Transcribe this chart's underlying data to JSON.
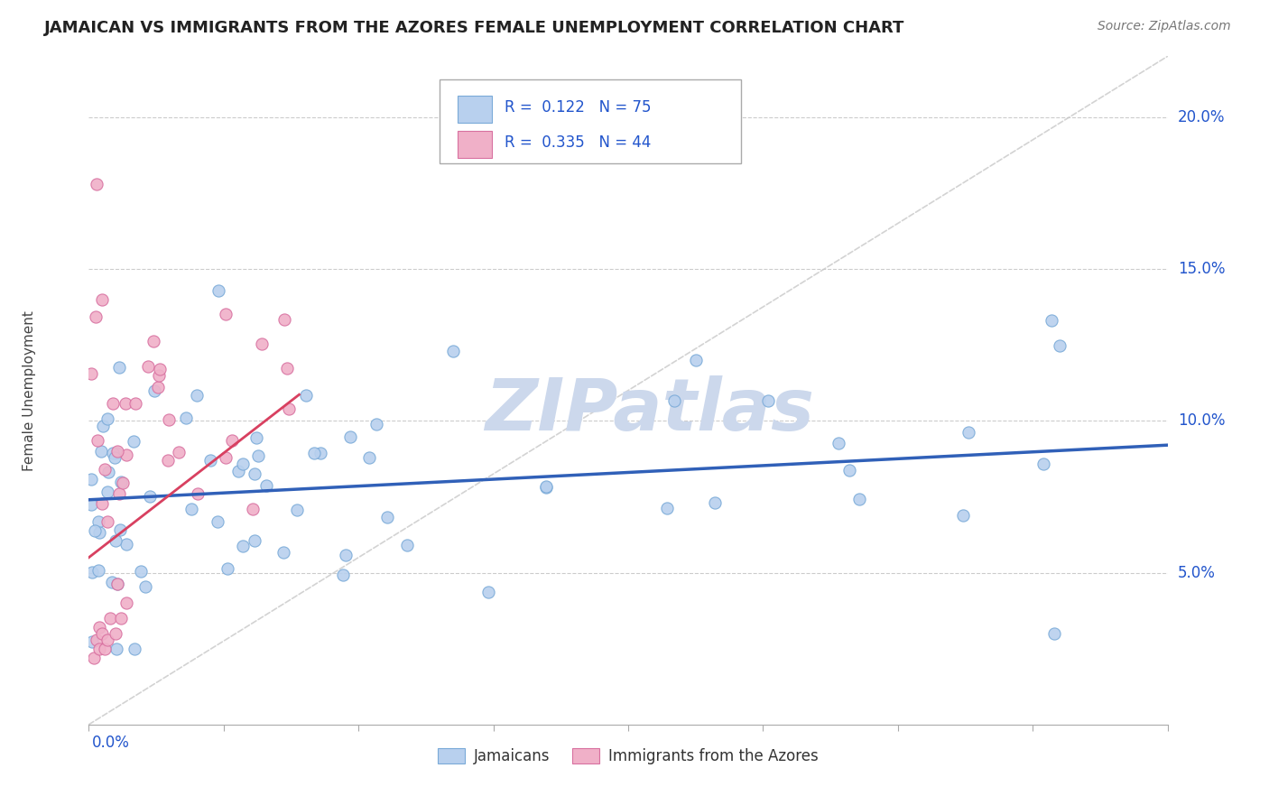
{
  "title": "JAMAICAN VS IMMIGRANTS FROM THE AZORES FEMALE UNEMPLOYMENT CORRELATION CHART",
  "source": "Source: ZipAtlas.com",
  "ylabel": "Female Unemployment",
  "yaxis_ticks": [
    0.05,
    0.1,
    0.15,
    0.2
  ],
  "yaxis_labels": [
    "5.0%",
    "10.0%",
    "15.0%",
    "20.0%"
  ],
  "xlim": [
    0.0,
    0.4
  ],
  "ylim": [
    0.0,
    0.22
  ],
  "jamaicans_color": "#b8d0ee",
  "jamaicans_edge": "#7aaad8",
  "azores_color": "#f0b0c8",
  "azores_edge": "#d870a0",
  "jamaicans_trend_color": "#3060b8",
  "azores_trend_color": "#d84060",
  "diag_color": "#c8c8c8",
  "watermark": "ZIPatlas",
  "watermark_color": "#ccd8ec",
  "legend_r1": "R =  0.122   N = 75",
  "legend_r2": "R =  0.335   N = 44",
  "legend_color": "#2255cc",
  "title_color": "#222222",
  "source_color": "#777777",
  "axis_label_color": "#2255cc",
  "ylabel_color": "#444444"
}
